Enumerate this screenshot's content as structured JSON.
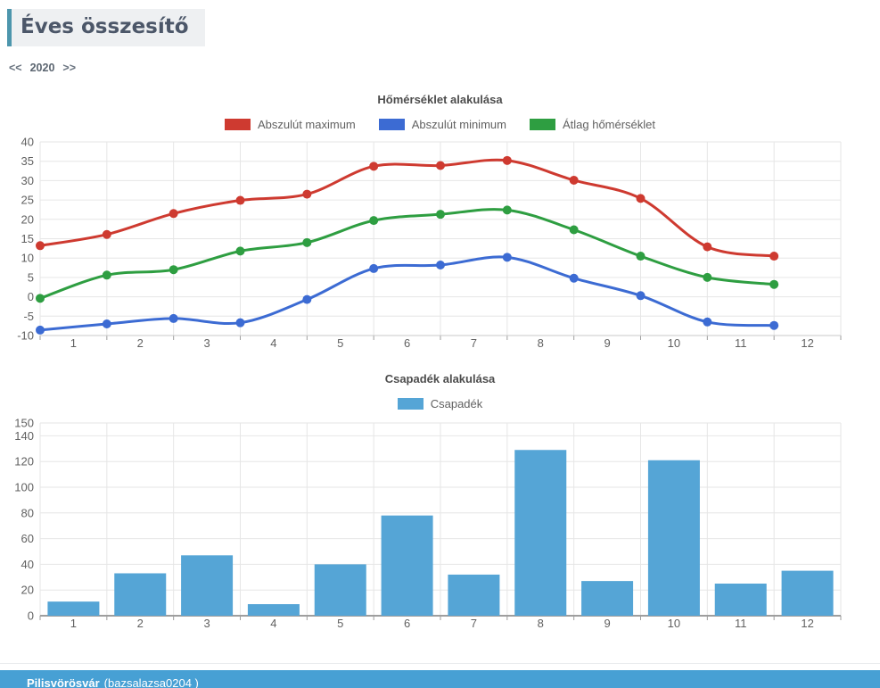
{
  "page_title": "Éves összesítő",
  "year_nav": {
    "prev": "<<",
    "year": "2020",
    "next": ">>"
  },
  "footer": {
    "station": "Pilisvörösvár",
    "station_code": "(bazsalazsa0204 )"
  },
  "colors": {
    "accent": "#4d96ad",
    "title_text": "#4c5769",
    "title_bg": "#eef0f2",
    "nav_text": "#5b6570",
    "axis_label": "#616161",
    "gridline": "#e6e6e6",
    "baseline": "#9e9e9e",
    "footer_bg": "#47a0d4",
    "max_series": "#ce3a30",
    "min_series": "#3c6bd3",
    "avg_series": "#2e9e41",
    "precip_series": "#55a5d6"
  },
  "chart_data": [
    {
      "type": "line",
      "title": "Hőmérséklet alakulása",
      "categories": [
        1,
        2,
        3,
        4,
        5,
        6,
        7,
        8,
        9,
        10,
        11,
        12
      ],
      "series": [
        {
          "name": "Abszulút maximum",
          "color": "#ce3a30",
          "values": [
            13.2,
            16.1,
            21.5,
            24.9,
            26.5,
            33.7,
            33.9,
            35.2,
            30.1,
            25.4,
            12.9,
            10.5
          ]
        },
        {
          "name": "Abszulút minimum",
          "color": "#3c6bd3",
          "values": [
            -8.6,
            -7.0,
            -5.6,
            -6.7,
            -0.7,
            7.3,
            8.2,
            10.2,
            4.8,
            0.3,
            -6.5,
            -7.4
          ]
        },
        {
          "name": "Átlag hőmérséklet",
          "color": "#2e9e41",
          "values": [
            -0.4,
            5.6,
            7.0,
            11.8,
            14.0,
            19.7,
            21.3,
            22.4,
            17.3,
            10.5,
            5.0,
            3.2
          ]
        }
      ],
      "xlabel": "",
      "ylabel": "",
      "ylim": [
        -10,
        40
      ],
      "yticks": [
        40,
        35,
        30,
        25,
        20,
        15,
        10,
        5,
        0,
        -5,
        -10
      ],
      "grid": true,
      "legend_position": "top",
      "point_radius": 5,
      "curve": "smooth"
    },
    {
      "type": "bar",
      "title": "Csapadék alakulása",
      "categories": [
        1,
        2,
        3,
        4,
        5,
        6,
        7,
        8,
        9,
        10,
        11,
        12
      ],
      "series": [
        {
          "name": "Csapadék",
          "color": "#55a5d6",
          "values": [
            11,
            33,
            47,
            9,
            40,
            78,
            32,
            129,
            27,
            121,
            25,
            35
          ]
        }
      ],
      "xlabel": "",
      "ylabel": "",
      "ylim": [
        0,
        150
      ],
      "yticks": [
        150,
        140,
        120,
        100,
        80,
        60,
        40,
        20,
        0
      ],
      "grid": true,
      "legend_position": "top"
    }
  ]
}
